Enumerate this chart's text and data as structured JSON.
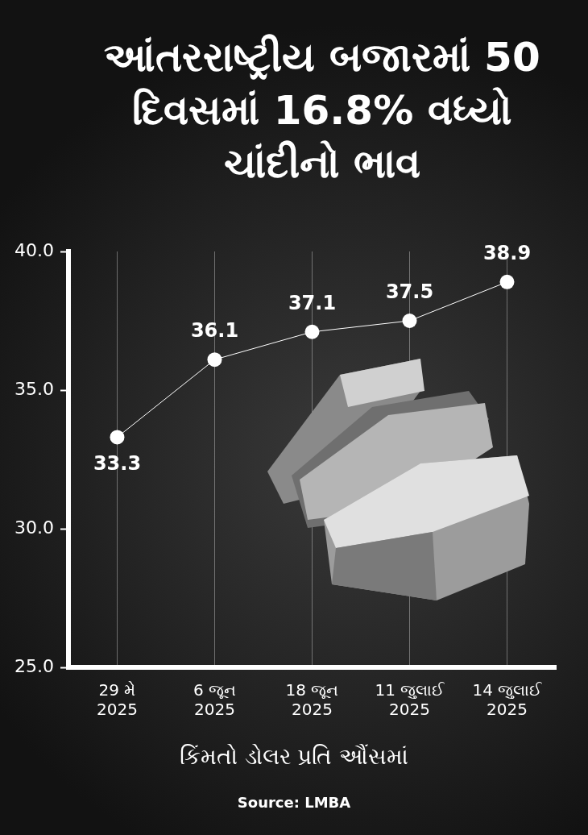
{
  "chart_data": {
    "type": "line",
    "title": "આંતરરાષ્ટ્રીય બજારમાં 50 દિવસમાં 16.8% વધ્યો ચાંદીનો ભાવ",
    "categories": [
      "29 મે\n2025",
      "6 જૂન\n2025",
      "18 જૂન\n2025",
      "11 જુલાઈ\n2025",
      "14 જુલાઈ\n2025"
    ],
    "values": [
      33.3,
      36.1,
      37.1,
      37.5,
      38.9
    ],
    "color": "#ffffff",
    "xlabel": "કિંમતો ડોલર પ્રતિ ઔંસમાં",
    "annotations": [
      "Source: LMBA"
    ],
    "ylim": [
      25,
      40
    ],
    "yticks": [
      {
        "value": 25,
        "label": "25.0"
      },
      {
        "value": 30,
        "label": "30.0"
      },
      {
        "value": 35,
        "label": "35.0"
      },
      {
        "value": 40,
        "label": "40.0"
      }
    ],
    "grid": "x",
    "marker": "circle",
    "line_style": "solid",
    "data_labels": true,
    "legend": false
  }
}
